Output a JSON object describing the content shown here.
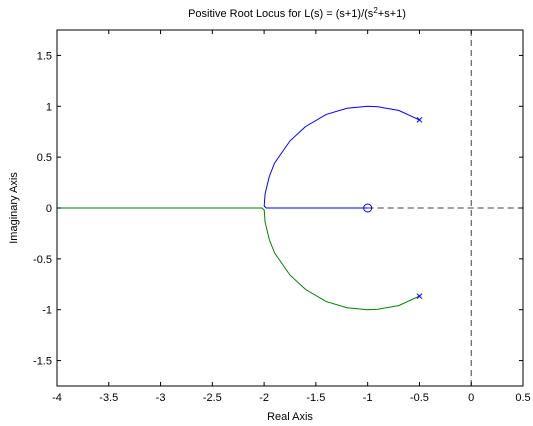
{
  "chart_data": {
    "type": "line",
    "title": {
      "prefix": "Positive Root Locus for L(s) = (s+1)/(s",
      "superscript": "2",
      "suffix": "+s+1)"
    },
    "xlabel": "Real Axis",
    "ylabel": "Imaginary Axis",
    "xlim": [
      -4,
      0.5
    ],
    "ylim": [
      -1.75,
      1.75
    ],
    "xticks": [
      "-4",
      "-3.5",
      "-3",
      "-2.5",
      "-2",
      "-1.5",
      "-1",
      "-0.5",
      "0",
      "0.5"
    ],
    "yticks": [
      "-1.5",
      "-1",
      "-0.5",
      "0",
      "0.5",
      "1",
      "1.5"
    ],
    "grid": false,
    "legend": "none",
    "series": [
      {
        "color": "#0000ff",
        "x": [
          -0.5,
          -0.7,
          -0.9,
          -1.0,
          -1.2,
          -1.4,
          -1.6,
          -1.75,
          -1.9,
          -1.95,
          -1.99,
          -1.999,
          -1.98,
          -1.5,
          -1.0
        ],
        "y": [
          0.866,
          0.96,
          0.995,
          1.0,
          0.98,
          0.92,
          0.8,
          0.66,
          0.44,
          0.31,
          0.14,
          0.02,
          0.0,
          0.0,
          0.0
        ]
      },
      {
        "color": "#008000",
        "x": [
          -0.5,
          -0.7,
          -0.9,
          -1.0,
          -1.2,
          -1.4,
          -1.6,
          -1.75,
          -1.9,
          -1.95,
          -1.99,
          -1.999,
          -2.02,
          -2.5,
          -3.0,
          -3.5,
          -4.0
        ],
        "y": [
          -0.866,
          -0.96,
          -0.995,
          -1.0,
          -0.98,
          -0.92,
          -0.8,
          -0.66,
          -0.44,
          -0.31,
          -0.14,
          -0.02,
          0.0,
          0.0,
          0.0,
          0.0,
          0.0
        ]
      }
    ],
    "poles": [
      {
        "x": -0.5,
        "y": 0.866
      },
      {
        "x": -0.5,
        "y": -0.866
      }
    ],
    "zeros": [
      {
        "x": -1.0,
        "y": 0.0
      }
    ],
    "reference_lines": {
      "vertical_x": 0,
      "horizontal_y": 0,
      "horizontal_from_x": -1.0,
      "color": "#404040",
      "style": "dashed"
    },
    "marker_color": "#0000ff"
  }
}
